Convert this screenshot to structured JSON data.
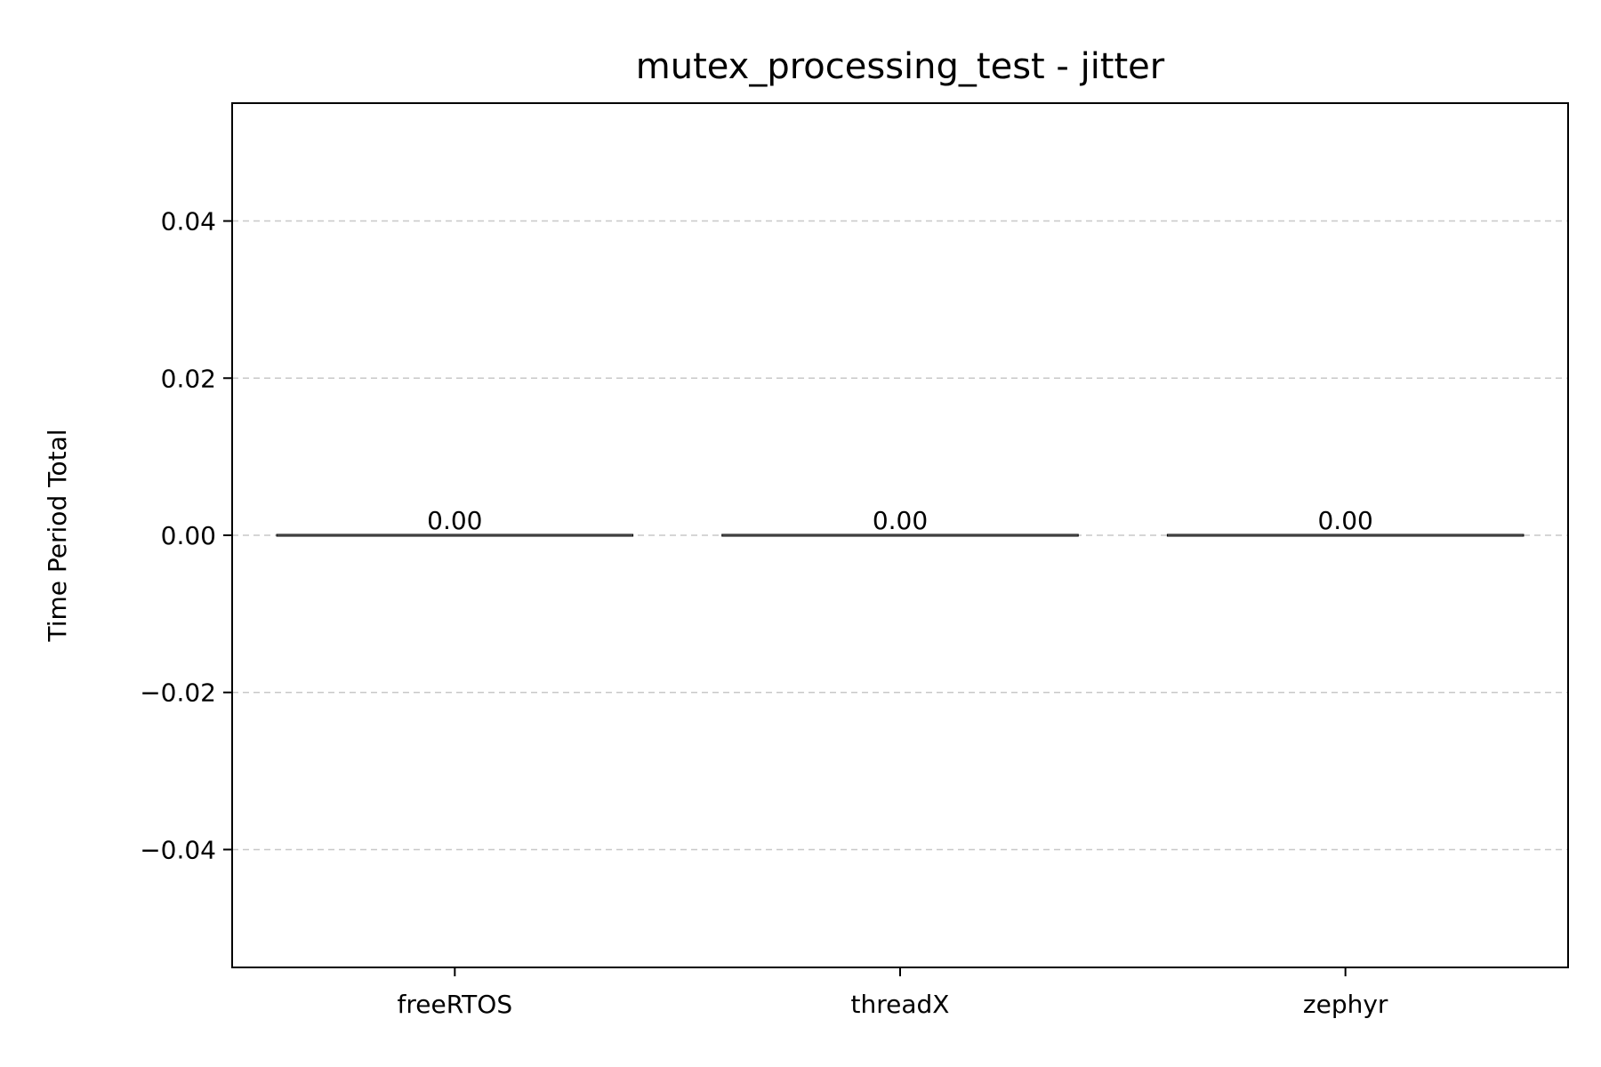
{
  "chart_data": {
    "type": "bar",
    "title": "mutex_processing_test - jitter",
    "xlabel": "",
    "ylabel": "Time Period Total",
    "categories": [
      "freeRTOS",
      "threadX",
      "zephyr"
    ],
    "values": [
      0.0,
      0.0,
      0.0
    ],
    "data_labels": [
      "0.00",
      "0.00",
      "0.00"
    ],
    "ylim": [
      -0.055,
      0.055
    ],
    "yticks": [
      -0.04,
      -0.02,
      0.0,
      0.02,
      0.04
    ],
    "ytick_labels": [
      "−0.04",
      "−0.02",
      "0.00",
      "0.02",
      "0.04"
    ],
    "grid": "y-dashed",
    "legend": "none",
    "colors": {
      "bar_edge": "#000000",
      "grid": "#c8c8c8",
      "axis": "#000000"
    }
  }
}
